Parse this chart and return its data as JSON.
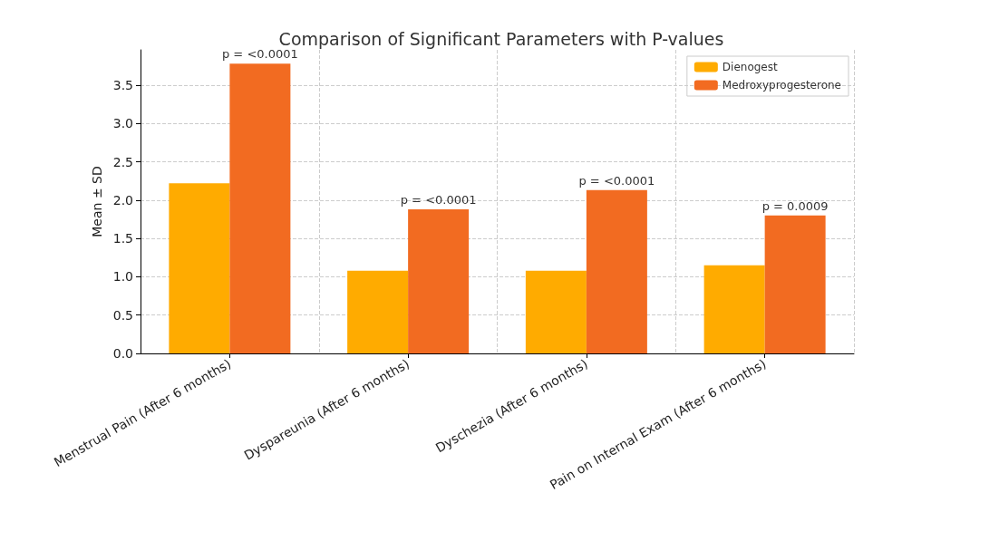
{
  "chart_data": {
    "type": "bar",
    "title": "Comparison of Significant Parameters with P-values",
    "ylabel": "Mean ± SD",
    "categories": [
      "Menstrual Pain (After 6 months)",
      "Dyspareunia (After 6 months)",
      "Dyschezia (After 6 months)",
      "Pain on Internal Exam (After 6 months)"
    ],
    "series": [
      {
        "name": "Dienogest",
        "color": "#ffab00",
        "values": [
          2.22,
          1.08,
          1.08,
          1.15
        ]
      },
      {
        "name": "Medroxyprogesterone",
        "color": "#f26b21",
        "values": [
          3.78,
          1.88,
          2.13,
          1.8
        ]
      }
    ],
    "annotations": [
      {
        "text": "p = <0.0001",
        "x": "Menstrual Pain (After 6 months)",
        "y": 3.78
      },
      {
        "text": "p = <0.0001",
        "x": "Dyspareunia (After 6 months)",
        "y": 1.88
      },
      {
        "text": "p = <0.0001",
        "x": "Dyschezia (After 6 months)",
        "y": 2.13
      },
      {
        "text": "p = 0.0009",
        "x": "Pain on Internal Exam (After 6 months)",
        "y": 1.8
      }
    ],
    "ylim": [
      0,
      3.96
    ],
    "yticks": [
      {
        "value": 0,
        "label": "0.0"
      },
      {
        "value": 0.5,
        "label": "0.5"
      },
      {
        "value": 1,
        "label": "1.0"
      },
      {
        "value": 1.5,
        "label": "1.5"
      },
      {
        "value": 2,
        "label": "2.0"
      },
      {
        "value": 2.5,
        "label": "2.5"
      },
      {
        "value": 3,
        "label": "3.0"
      },
      {
        "value": 3.5,
        "label": "3.5"
      }
    ],
    "grid": true,
    "legend": "top right"
  }
}
